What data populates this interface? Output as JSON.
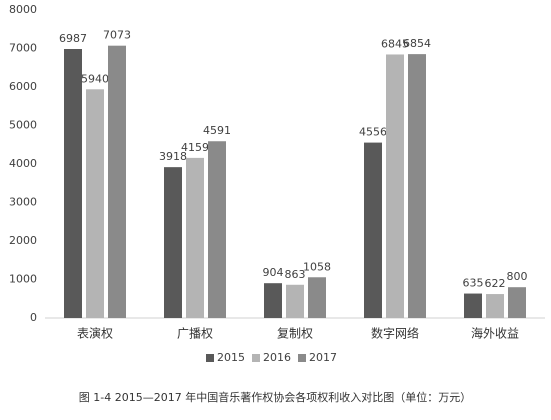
{
  "chart_data": {
    "type": "bar",
    "caption": "图 1-4 2015—2017 年中国音乐著作权协会各项权利收入对比图（单位：万元）",
    "categories": [
      "表演权",
      "广播权",
      "复制权",
      "数字网络",
      "海外收益"
    ],
    "series": [
      {
        "name": "2015",
        "color": "#595959",
        "values": [
          6987,
          3918,
          904,
          4556,
          635
        ]
      },
      {
        "name": "2016",
        "color": "#b4b4b4",
        "values": [
          5940,
          4159,
          863,
          6845,
          622
        ]
      },
      {
        "name": "2017",
        "color": "#8a8a8a",
        "values": [
          7073,
          4591,
          1058,
          6854,
          800
        ]
      }
    ],
    "ylim": [
      0,
      8000
    ],
    "yticks": [
      0,
      1000,
      2000,
      3000,
      4000,
      5000,
      6000,
      7000,
      8000
    ],
    "legend": "bottom"
  }
}
